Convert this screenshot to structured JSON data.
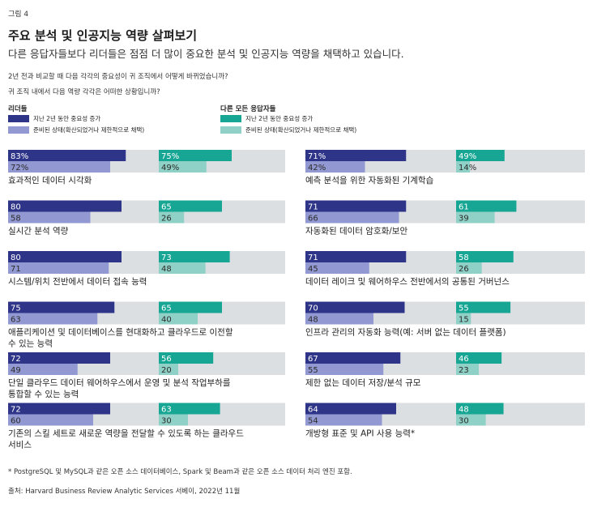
{
  "figure_label": "그림 4",
  "title": "주요 분석 및 인공지능 역량 살펴보기",
  "subtitle": "다른 응답자들보다 리더들은 점점 더 많이 중요한 분석 및 인공지능 역량을 채택하고 있습니다.",
  "question1": "2년 전과 비교할 때 다음 각각의 중요성이 귀 조직에서 어떻게 바뀌었습니까?",
  "question2": "귀 조직 내에서 다음 역량 각각은 어떠한 상황입니까?",
  "legend": {
    "leaders": {
      "heading": "리더들",
      "items": [
        "지난 2년 동안 중요성 증가",
        "준비된 상태(확산되었거나 제한적으로 채택)"
      ]
    },
    "others": {
      "heading": "다른 모든 응답자들",
      "items": [
        "지난 2년 동안 중요성 증가",
        "준비된 상태(확산되었거나 제한적으로 채택)"
      ]
    }
  },
  "colors": {
    "leaders_increase": "#2e3588",
    "leaders_ready": "#9299d2",
    "others_increase": "#17a693",
    "others_ready": "#8fd1c6",
    "track": "#dcdfe2"
  },
  "chart_data": {
    "type": "bar",
    "orientation": "horizontal",
    "xlim": [
      0,
      100
    ],
    "series": [
      {
        "name": "리더들 - 지난 2년 동안 중요성 증가"
      },
      {
        "name": "리더들 - 준비된 상태(확산되었거나 제한적으로 채택)"
      },
      {
        "name": "다른 모든 응답자들 - 지난 2년 동안 중요성 증가"
      },
      {
        "name": "다른 모든 응답자들 - 준비된 상태(확산되었거나 제한적으로 채택)"
      }
    ],
    "items": [
      {
        "label": [
          "효과적인 데이터 시각화"
        ],
        "leaders_increase": 83,
        "leaders_ready": 72,
        "others_increase": 75,
        "others_ready": 49,
        "pct": true
      },
      {
        "label": [
          "실시간 분석 역량"
        ],
        "leaders_increase": 80,
        "leaders_ready": 58,
        "others_increase": 65,
        "others_ready": 26
      },
      {
        "label": [
          "시스템/위치 전반에서 데이터 접속 능력"
        ],
        "leaders_increase": 80,
        "leaders_ready": 71,
        "others_increase": 73,
        "others_ready": 48
      },
      {
        "label": [
          "애플리케이션 및 데이터베이스를 현대화하고 클라우드로 이전할",
          "수 있는 능력"
        ],
        "leaders_increase": 75,
        "leaders_ready": 63,
        "others_increase": 65,
        "others_ready": 40
      },
      {
        "label": [
          "단일 클라우드 데이터 웨어하우스에서 운영 및 분석 작업부하를",
          "통합할 수 있는 능력"
        ],
        "leaders_increase": 72,
        "leaders_ready": 49,
        "others_increase": 56,
        "others_ready": 20
      },
      {
        "label": [
          "기존의 스킬 세트로 새로운 역량을 전달할 수 있도록 하는 클라우드",
          "서비스"
        ],
        "leaders_increase": 72,
        "leaders_ready": 60,
        "others_increase": 63,
        "others_ready": 30
      },
      {
        "label": [
          "예측 분석을 위한 자동화된 기계학습"
        ],
        "leaders_increase": 71,
        "leaders_ready": 42,
        "others_increase": 49,
        "others_ready": 14,
        "pct": true
      },
      {
        "label": [
          "자동화된 데이터 암호화/보안"
        ],
        "leaders_increase": 71,
        "leaders_ready": 66,
        "others_increase": 61,
        "others_ready": 39
      },
      {
        "label": [
          "데이터 레이크 및 웨어하우스 전반에서의 공통된 거버넌스"
        ],
        "leaders_increase": 71,
        "leaders_ready": 45,
        "others_increase": 58,
        "others_ready": 26
      },
      {
        "label": [
          "인프라 관리의 자동화 능력(예: 서버 없는 데이터 플랫폼)"
        ],
        "leaders_increase": 70,
        "leaders_ready": 48,
        "others_increase": 55,
        "others_ready": 15
      },
      {
        "label": [
          "제한 없는 데이터 저장/분석 규모"
        ],
        "leaders_increase": 67,
        "leaders_ready": 55,
        "others_increase": 46,
        "others_ready": 23
      },
      {
        "label": [
          "개방형 표준 및 API 사용 능력*"
        ],
        "leaders_increase": 64,
        "leaders_ready": 54,
        "others_increase": 48,
        "others_ready": 30
      }
    ]
  },
  "footnote": "* PostgreSQL 및 MySQL과 같은 오픈 소스 데이터베이스, Spark 및 Beam과 같은 오픈 소스 데이터 처리 엔진 포함.",
  "source": "출처: Harvard Business Review Analytic Services 서베이, 2022년 11월"
}
